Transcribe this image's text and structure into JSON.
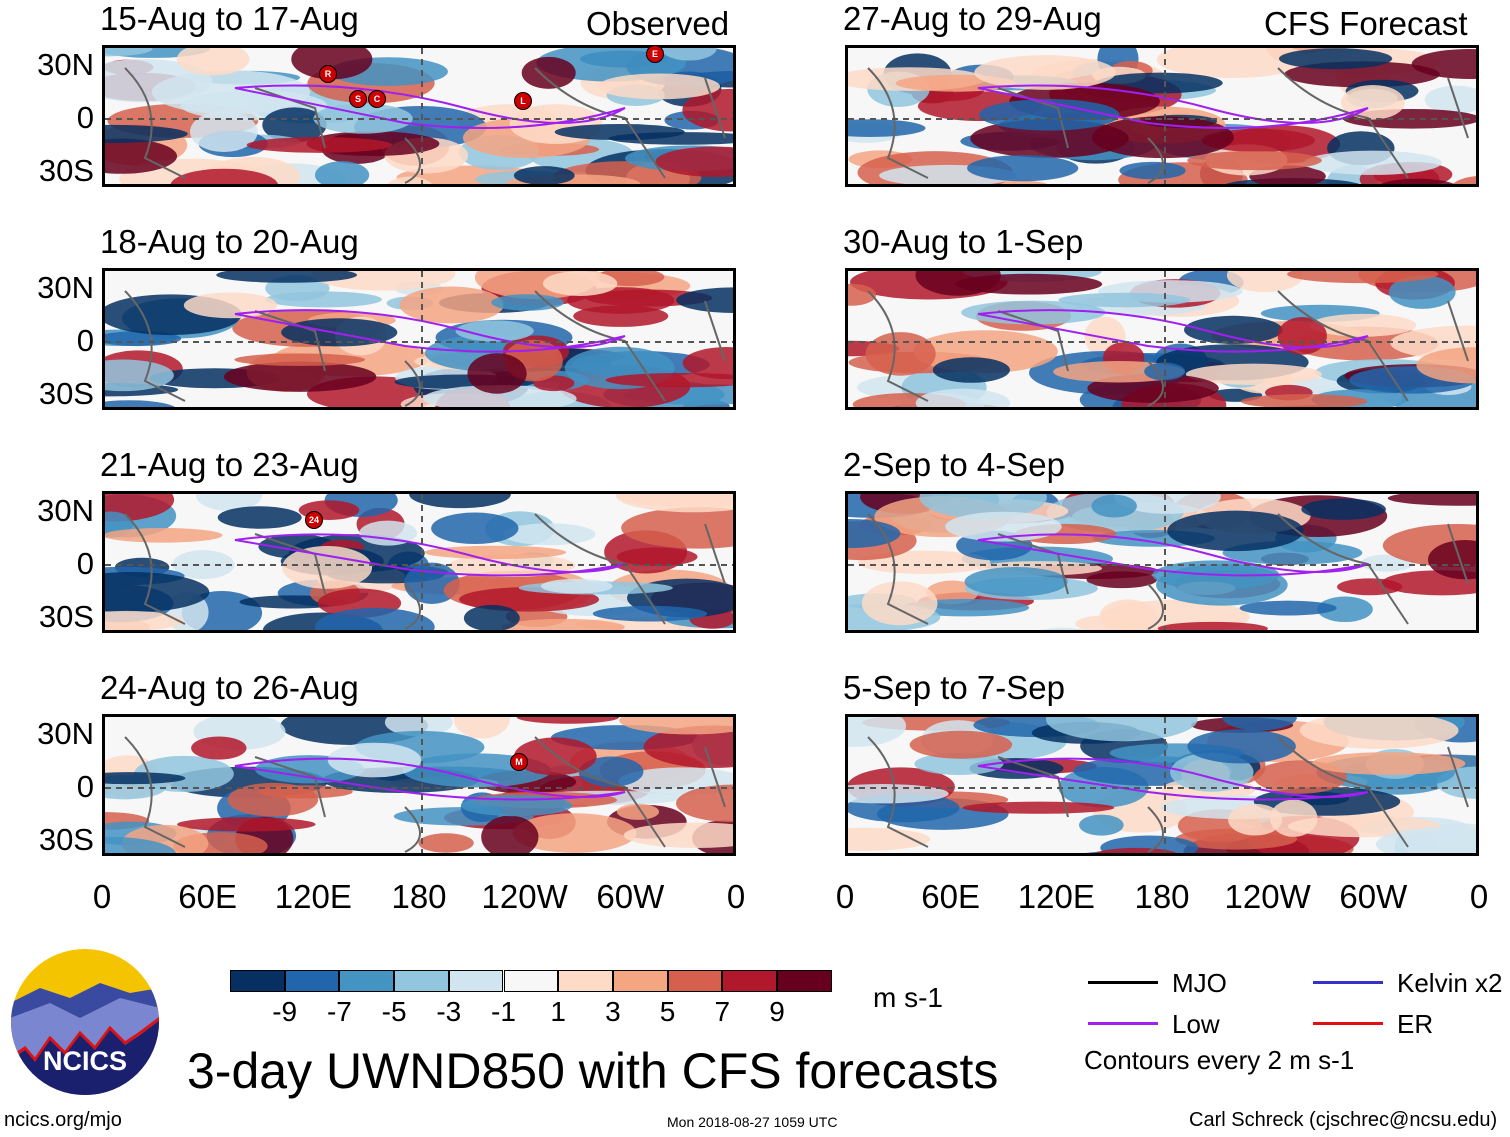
{
  "chart_data": {
    "type": "heatmap",
    "title": "3-day UWND850 with CFS forecasts",
    "variable": "UWND850",
    "units": "m s-1",
    "columns": [
      {
        "label": "Observed",
        "panels": [
          "15-Aug to 17-Aug",
          "18-Aug to 20-Aug",
          "21-Aug to 23-Aug",
          "24-Aug to 26-Aug"
        ]
      },
      {
        "label": "CFS Forecast",
        "panels": [
          "27-Aug to 29-Aug",
          "30-Aug to 1-Sep",
          "2-Sep to 4-Sep",
          "5-Sep to 7-Sep"
        ]
      }
    ],
    "lat_ticks": [
      "30N",
      "0",
      "30S"
    ],
    "lon_ticks": [
      "0",
      "60E",
      "120E",
      "180",
      "120W",
      "60W",
      "0"
    ],
    "colorbar": {
      "labels": [
        "-9",
        "-7",
        "-5",
        "-3",
        "-1",
        "1",
        "3",
        "5",
        "7",
        "9"
      ],
      "colors": [
        "#053061",
        "#2166ac",
        "#4393c3",
        "#92c5de",
        "#d1e5f0",
        "#f7f7f7",
        "#fddbc7",
        "#f4a582",
        "#d6604d",
        "#b2182b",
        "#67001f"
      ]
    },
    "storms": [
      {
        "panel": 0,
        "labels": [
          "R",
          "S",
          "C",
          "L",
          "E"
        ]
      },
      {
        "panel": 2,
        "labels": [
          "24"
        ]
      },
      {
        "panel": 3,
        "labels": [
          "M"
        ]
      }
    ],
    "legend": [
      {
        "name": "MJO",
        "color": "#000000"
      },
      {
        "name": "Kelvin x2",
        "color": "#3333cc"
      },
      {
        "name": "Low",
        "color": "#a020f0"
      },
      {
        "name": "ER",
        "color": "#e01010"
      }
    ],
    "contour_note": "Contours every 2 m s-1"
  },
  "footer": {
    "left": "ncics.org/mjo",
    "center": "Mon 2018-08-27 1059 UTC",
    "right": "Carl Schreck (cjschrec@ncsu.edu)"
  },
  "logo": {
    "text": "NCICS"
  }
}
